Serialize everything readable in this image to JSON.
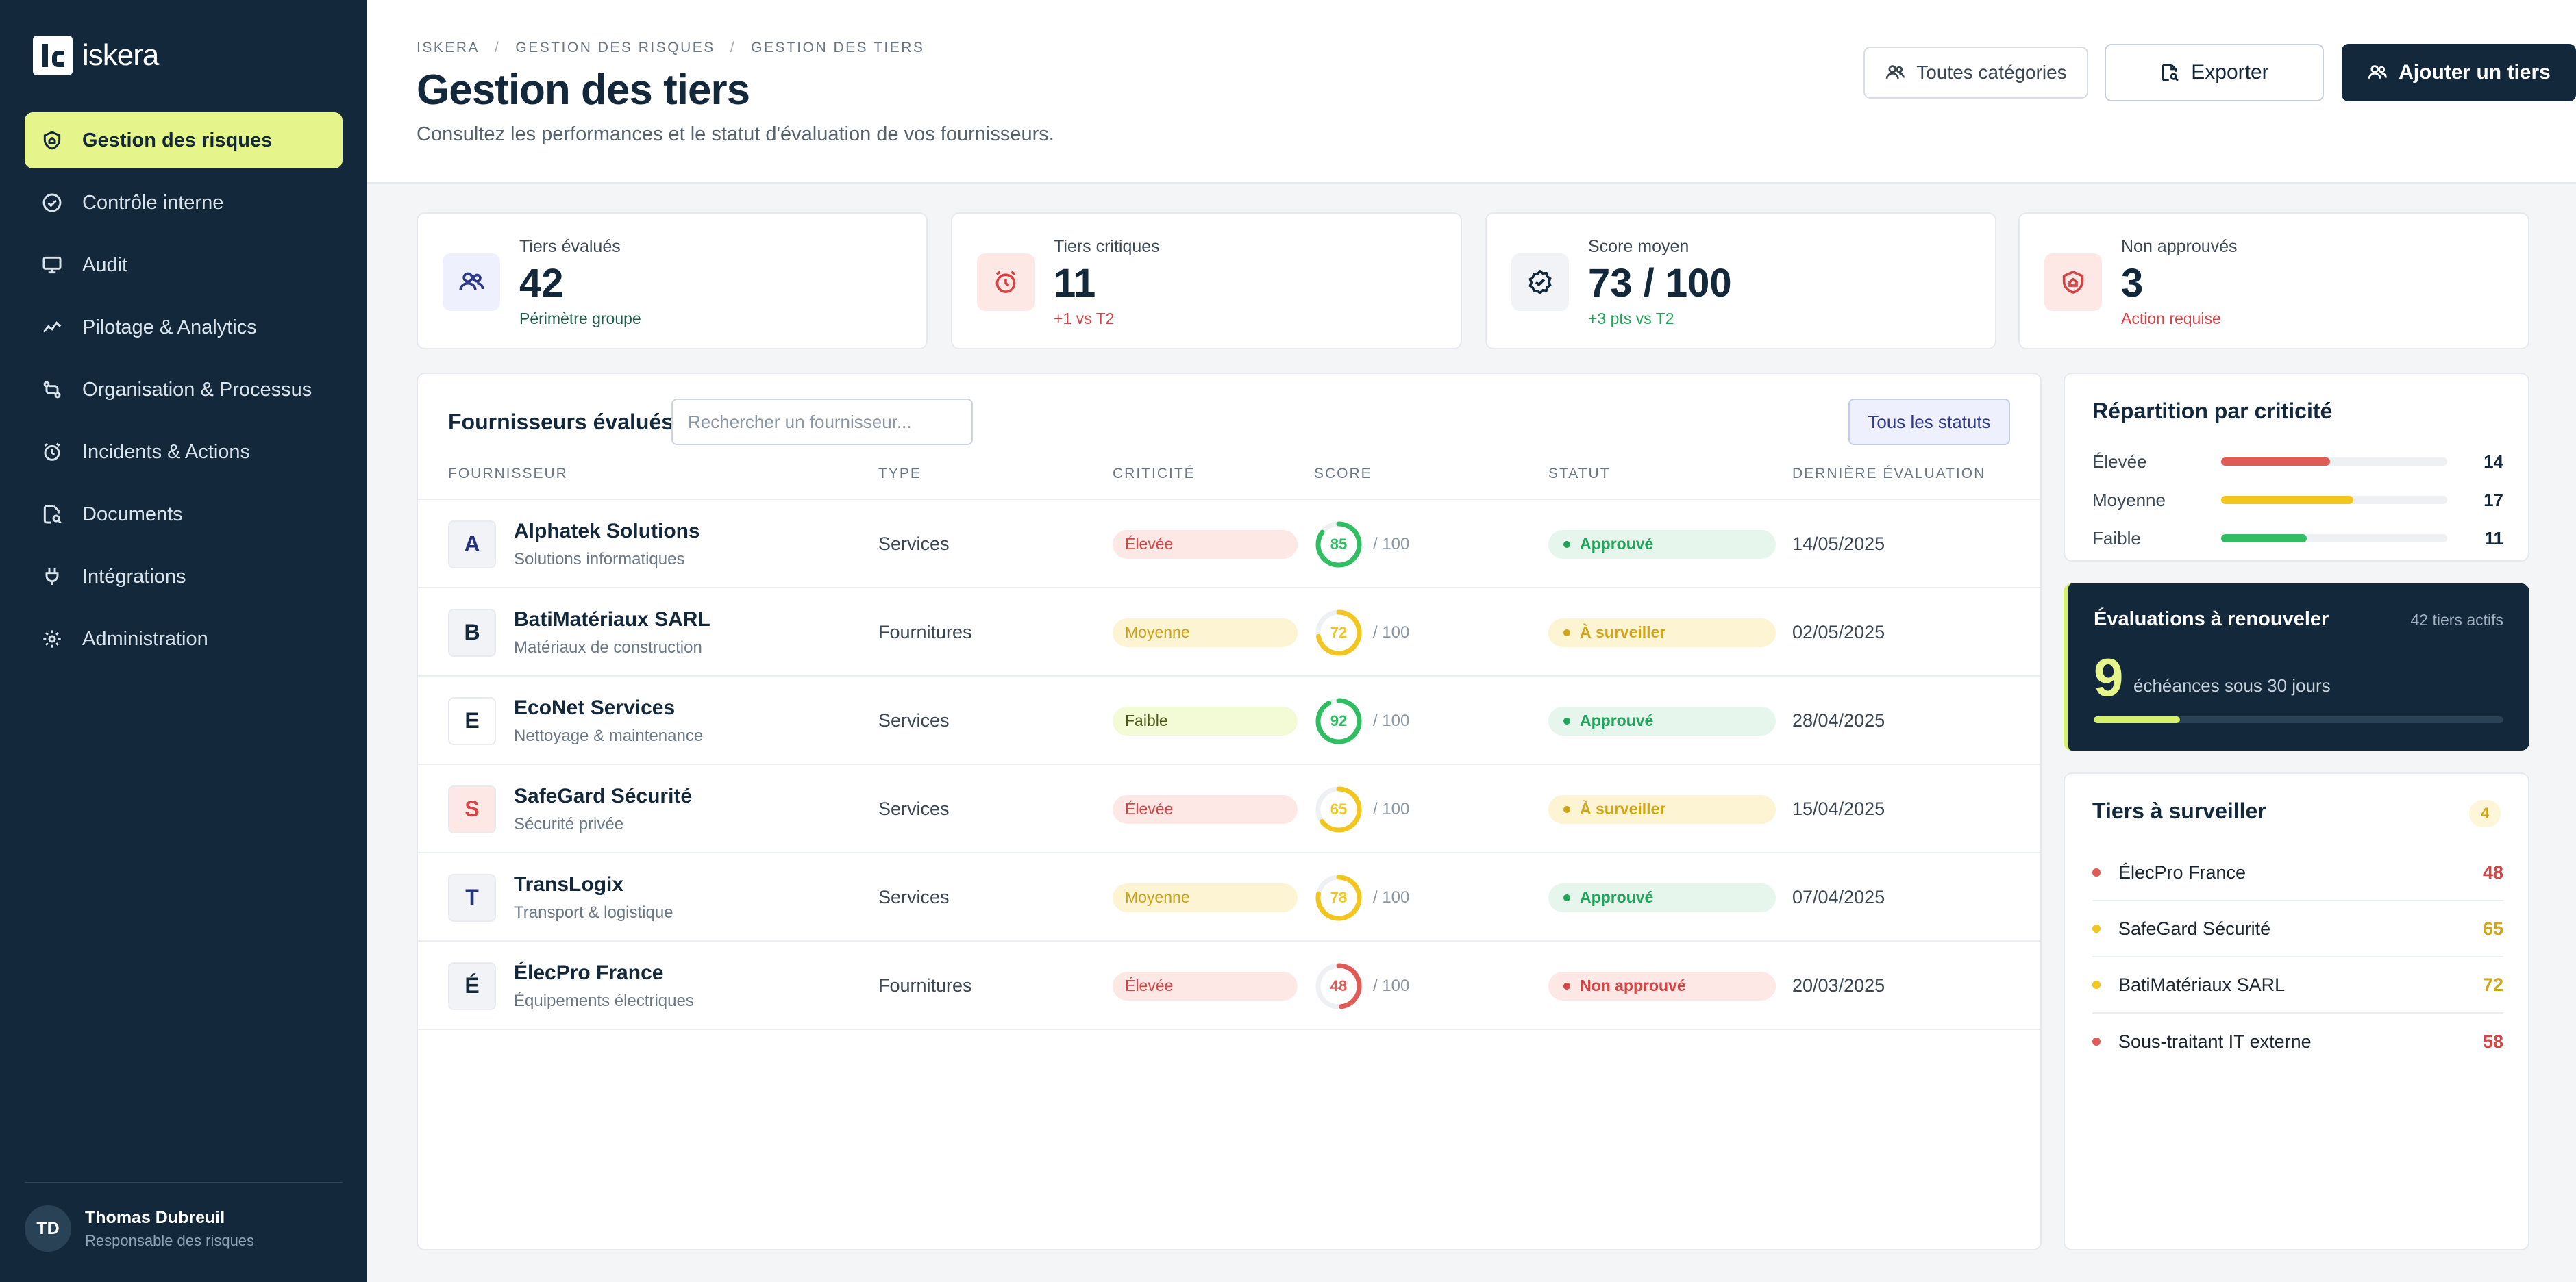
{
  "app": {
    "brand": "iskera"
  },
  "sidebar": {
    "items": [
      {
        "label": "Gestion des risques",
        "icon": "shield-home-icon",
        "active": true
      },
      {
        "label": "Contrôle interne",
        "icon": "check-circle-icon"
      },
      {
        "label": "Audit",
        "icon": "monitor-icon"
      },
      {
        "label": "Pilotage & Analytics",
        "icon": "line-chart-icon"
      },
      {
        "label": "Organisation & Processus",
        "icon": "flow-icon"
      },
      {
        "label": "Incidents & Actions",
        "icon": "alarm-icon"
      },
      {
        "label": "Documents",
        "icon": "document-search-icon"
      },
      {
        "label": "Intégrations",
        "icon": "plug-icon"
      },
      {
        "label": "Administration",
        "icon": "gear-icon"
      }
    ],
    "user": {
      "initials": "TD",
      "name": "Thomas Dubreuil",
      "role": "Responsable des risques"
    }
  },
  "header": {
    "breadcrumb": [
      "ISKERA",
      "GESTION DES RISQUES",
      "GESTION DES TIERS"
    ],
    "title": "Gestion des tiers",
    "subtitle": "Consultez les performances et le statut d'évaluation de vos fournisseurs.",
    "categories_label": "Toutes catégories",
    "export_label": "Exporter",
    "add_label": "Ajouter un tiers"
  },
  "kpis": [
    {
      "label": "Tiers évalués",
      "value": "42",
      "note": "Périmètre groupe",
      "note_color": "#1f5d4a",
      "icon_bg": "#eef0fd",
      "icon_color": "#2e3a8c",
      "icon": "users-icon"
    },
    {
      "label": "Tiers critiques",
      "value": "11",
      "note": "+1 vs T2",
      "note_color": "#d64545",
      "icon_bg": "#fde8e6",
      "icon_color": "#d64545",
      "icon": "alarm-icon"
    },
    {
      "label": "Score moyen",
      "value": "73 / 100",
      "note": "+3 pts vs T2",
      "note_color": "#22a35a",
      "icon_bg": "#f1f3f6",
      "icon_color": "#13283a",
      "icon": "badge-check-icon"
    },
    {
      "label": "Non approuvés",
      "value": "3",
      "note": "Action requise",
      "note_color": "#d64545",
      "icon_bg": "#fde8e6",
      "icon_color": "#d64545",
      "icon": "shield-home-icon"
    }
  ],
  "suppliers": {
    "title": "Fournisseurs évalués",
    "search_placeholder": "Rechercher un fournisseur...",
    "filter_label": "Tous les statuts",
    "columns": [
      "FOURNISSEUR",
      "TYPE",
      "CRITICITÉ",
      "SCORE",
      "STATUT",
      "DERNIÈRE ÉVALUATION"
    ],
    "score_max": "/ 100",
    "rows": [
      {
        "letter": "A",
        "letter_color": "#26327a",
        "letter_bg": "#f1f3f6",
        "name": "Alphatek Solutions",
        "desc": "Solutions informatiques",
        "type": "Services",
        "criticality": "Élevée",
        "crit_level": "high",
        "score": 85,
        "score_label": "85",
        "status": "Approuvé",
        "status_level": "ok",
        "date": "14/05/2025"
      },
      {
        "letter": "B",
        "letter_color": "#13283a",
        "letter_bg": "#f1f3f6",
        "name": "BatiMatériaux SARL",
        "desc": "Matériaux de construction",
        "type": "Fournitures",
        "criticality": "Moyenne",
        "crit_level": "mid",
        "score": 72,
        "score_label": "72",
        "status": "À surveiller",
        "status_level": "warn",
        "date": "02/05/2025"
      },
      {
        "letter": "E",
        "letter_color": "#13283a",
        "letter_bg": "#ffffff",
        "name": "EcoNet Services",
        "desc": "Nettoyage & maintenance",
        "type": "Services",
        "criticality": "Faible",
        "crit_level": "low",
        "score": 92,
        "score_label": "92",
        "status": "Approuvé",
        "status_level": "ok",
        "date": "28/04/2025"
      },
      {
        "letter": "S",
        "letter_color": "#d64545",
        "letter_bg": "#fde8e6",
        "name": "SafeGard Sécurité",
        "desc": "Sécurité privée",
        "type": "Services",
        "criticality": "Élevée",
        "crit_level": "high",
        "score": 65,
        "score_label": "65",
        "status": "À surveiller",
        "status_level": "warn",
        "date": "15/04/2025"
      },
      {
        "letter": "T",
        "letter_color": "#26327a",
        "letter_bg": "#f1f3f6",
        "name": "TransLogix",
        "desc": "Transport & logistique",
        "type": "Services",
        "criticality": "Moyenne",
        "crit_level": "mid",
        "score": 78,
        "score_label": "78",
        "status": "Approuvé",
        "status_level": "ok",
        "date": "07/04/2025"
      },
      {
        "letter": "É",
        "letter_color": "#13283a",
        "letter_bg": "#f1f3f6",
        "name": "ÉlecPro France",
        "desc": "Équipements électriques",
        "type": "Fournitures",
        "criticality": "Élevée",
        "crit_level": "high",
        "score": 48,
        "score_label": "48",
        "status": "Non approuvé",
        "status_level": "bad",
        "date": "20/03/2025"
      }
    ]
  },
  "criticality": {
    "title": "Répartition par criticité",
    "total": 42,
    "items": [
      {
        "label": "Élevée",
        "value": 14,
        "value_label": "14",
        "color": "#e05a56"
      },
      {
        "label": "Moyenne",
        "value": 17,
        "value_label": "17",
        "color": "#f2c61f"
      },
      {
        "label": "Faible",
        "value": 11,
        "value_label": "11",
        "color": "#2fbf62"
      }
    ]
  },
  "renewals": {
    "title": "Évaluations à renouveler",
    "active_label": "42 tiers actifs",
    "count": "9",
    "text": "échéances sous 30 jours",
    "progress": 0.21
  },
  "watchlist": {
    "title": "Tiers à surveiller",
    "count": "4",
    "items": [
      {
        "name": "ÉlecPro France",
        "score": "48",
        "color": "#e05a56"
      },
      {
        "name": "SafeGard Sécurité",
        "score": "65",
        "color": "#f2c61f"
      },
      {
        "name": "BatiMatériaux SARL",
        "score": "72",
        "color": "#f2c61f"
      },
      {
        "name": "Sous-traitant IT externe",
        "score": "58",
        "color": "#e05a56"
      }
    ]
  },
  "colors": {
    "accent": "#e5f58c",
    "navy": "#13283a",
    "high": "#d64545",
    "mid": "#f2c61f",
    "low": "#2fbf62"
  }
}
